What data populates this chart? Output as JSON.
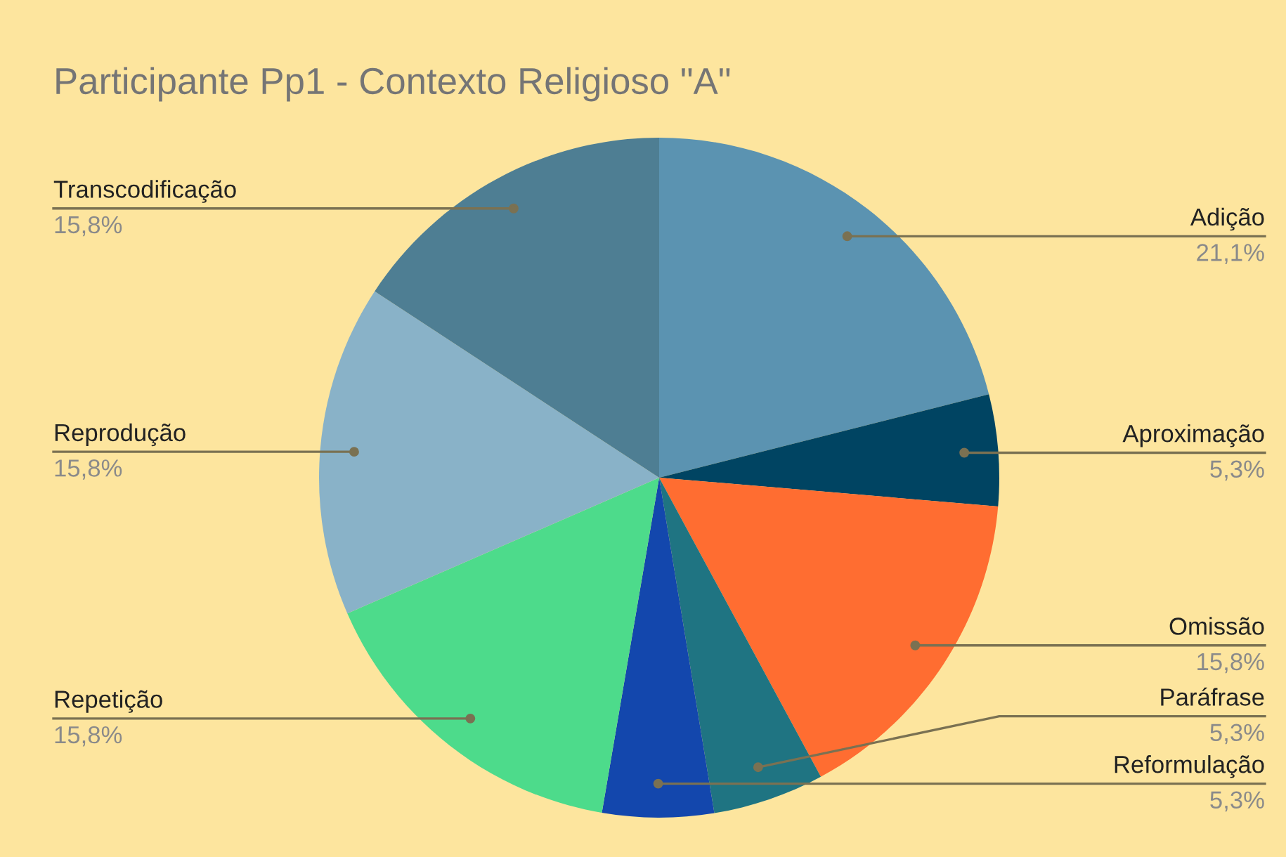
{
  "chart_data": {
    "type": "pie",
    "title": "Participante Pp1 - Contexto Religioso \"A\"",
    "categories": [
      "Adição",
      "Aproximação",
      "Omissão",
      "Paráfrase",
      "Reformulação",
      "Repetição",
      "Reprodução",
      "Transcodificação"
    ],
    "values": [
      21.1,
      5.3,
      15.8,
      5.3,
      5.3,
      15.8,
      15.8,
      15.8
    ],
    "value_labels": [
      "21,1%",
      "5,3%",
      "15,8%",
      "5,3%",
      "5,3%",
      "15,8%",
      "15,8%",
      "15,8%"
    ],
    "colors": [
      "#5b93b1",
      "#004462",
      "#ff6d31",
      "#1f7482",
      "#1347ad",
      "#4ddb8b",
      "#89b2c8",
      "#4e7e93"
    ]
  }
}
